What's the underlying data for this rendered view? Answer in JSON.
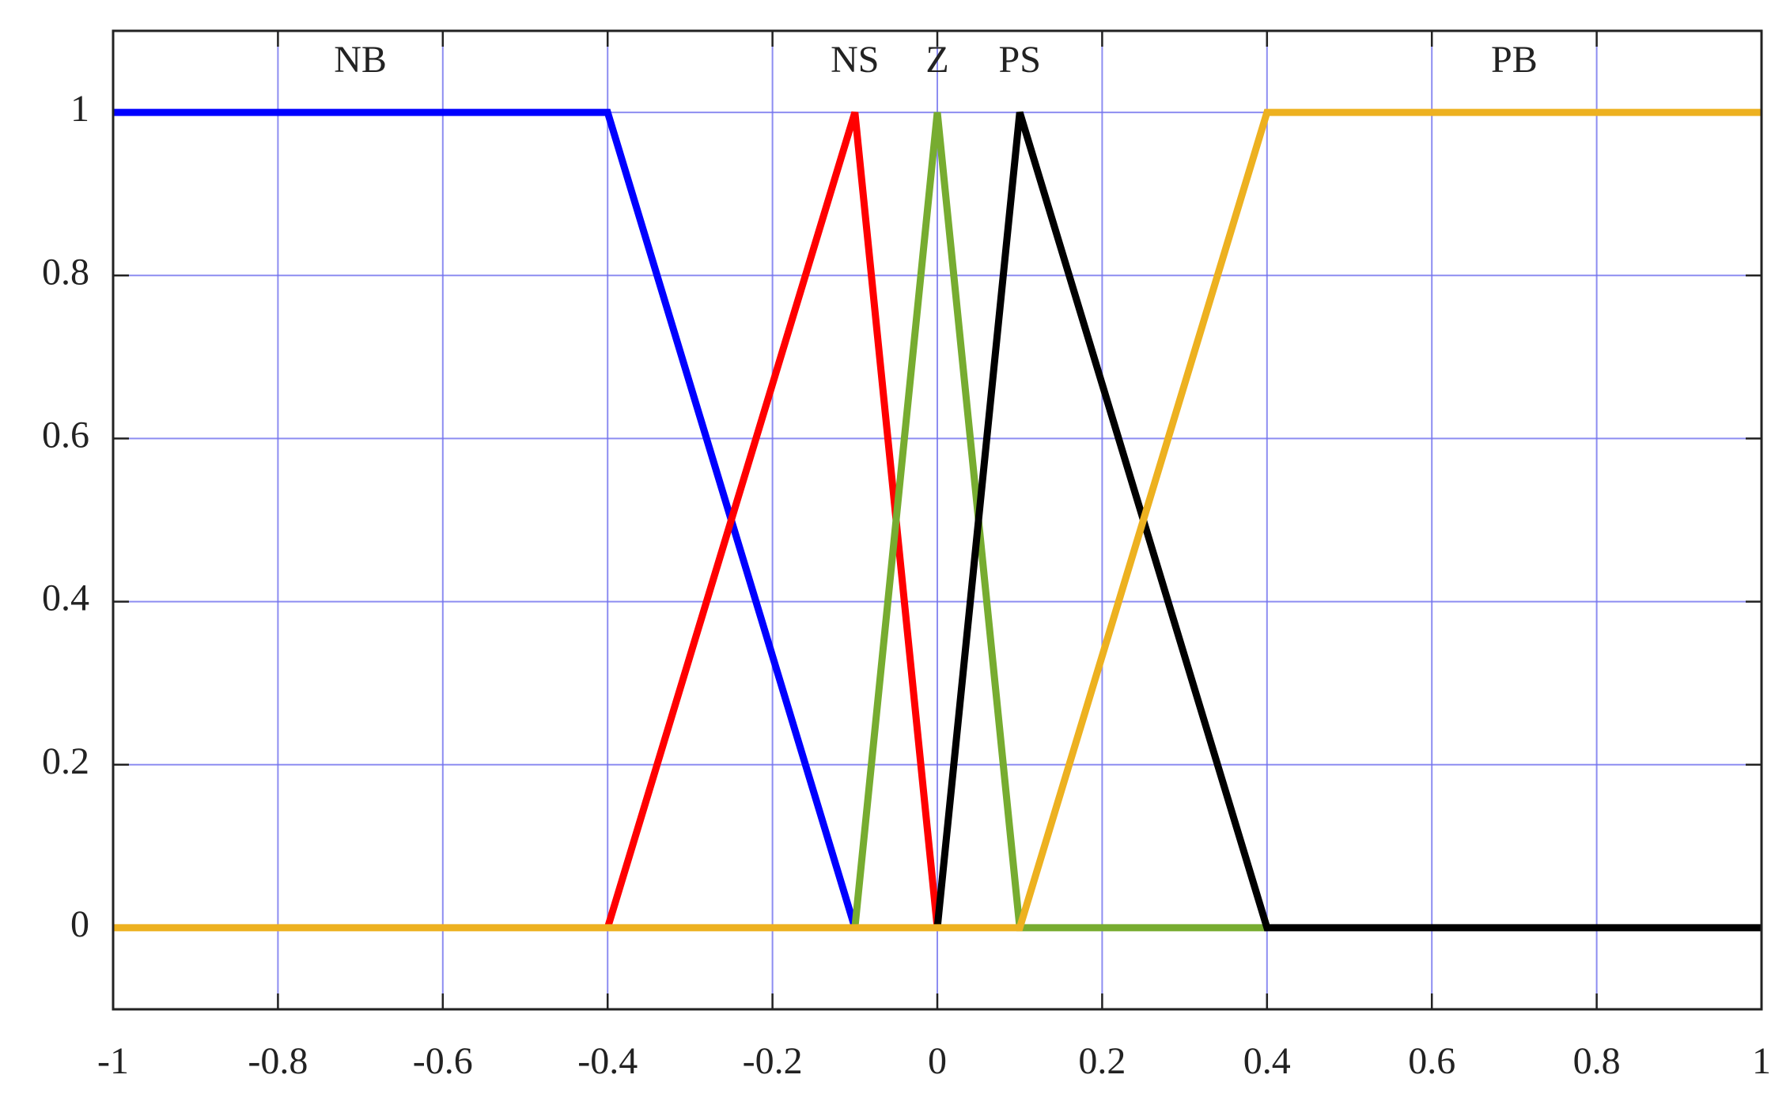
{
  "chart_data": {
    "type": "line",
    "series": [
      {
        "name": "NB",
        "color": "#0000ff",
        "x": [
          -1,
          -0.4,
          -0.1
        ],
        "values": [
          1,
          1,
          0
        ]
      },
      {
        "name": "NS",
        "color": "#ff0000",
        "x": [
          -0.4,
          -0.1,
          0
        ],
        "values": [
          0,
          1,
          0
        ]
      },
      {
        "name": "Z",
        "color": "#77ac30",
        "x": [
          -0.1,
          0,
          0.1,
          0.4
        ],
        "values": [
          0,
          1,
          0,
          0
        ]
      },
      {
        "name": "PS",
        "color": "#000000",
        "x": [
          0,
          0.1,
          0.4,
          1
        ],
        "values": [
          0,
          1,
          0,
          0
        ]
      },
      {
        "name": "PB",
        "color": "#edb120",
        "x": [
          -1,
          0.1,
          0.4,
          1
        ],
        "values": [
          0,
          0,
          1,
          1
        ]
      }
    ],
    "annotations": [
      {
        "text": "NB",
        "x": -0.7,
        "y": 1.06
      },
      {
        "text": "NS",
        "x": -0.1,
        "y": 1.06
      },
      {
        "text": "Z",
        "x": 0,
        "y": 1.06
      },
      {
        "text": "PS",
        "x": 0.1,
        "y": 1.06
      },
      {
        "text": "PB",
        "x": 0.7,
        "y": 1.06
      }
    ],
    "xlim": [
      -1,
      1
    ],
    "ylim": [
      -0.1,
      1.1
    ],
    "xticks": [
      -1,
      -0.8,
      -0.6,
      -0.4,
      -0.2,
      0,
      0.2,
      0.4,
      0.6,
      0.8,
      1
    ],
    "yticks": [
      0,
      0.2,
      0.4,
      0.6,
      0.8,
      1
    ],
    "grid": true,
    "grid_color": "#7070ee"
  }
}
